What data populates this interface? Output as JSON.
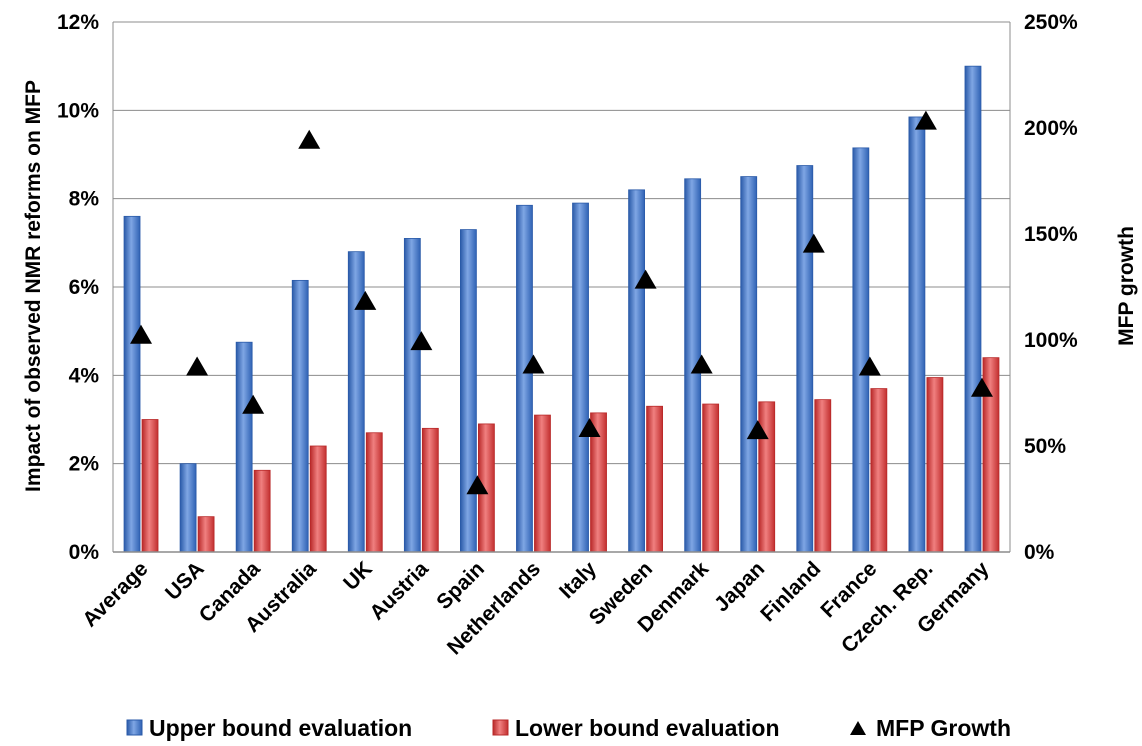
{
  "chart_data": {
    "type": "bar",
    "categories": [
      "Average",
      "USA",
      "Canada",
      "Australia",
      "UK",
      "Austria",
      "Spain",
      "Netherlands",
      "Italy",
      "Sweden",
      "Denmark",
      "Japan",
      "Finland",
      "France",
      "Czech. Rep.",
      "Germany"
    ],
    "series": [
      {
        "name": "Upper bound evaluation",
        "axis": "left",
        "type": "bar",
        "color": "#3f73c4",
        "values": [
          7.6,
          2.0,
          4.75,
          6.15,
          6.8,
          7.1,
          7.3,
          7.85,
          7.9,
          8.2,
          8.45,
          8.5,
          8.75,
          9.15,
          9.85,
          11.0
        ]
      },
      {
        "name": "Lower bound evaluation",
        "axis": "left",
        "type": "bar",
        "color": "#d23a3a",
        "values": [
          3.0,
          0.8,
          1.85,
          2.4,
          2.7,
          2.8,
          2.9,
          3.1,
          3.15,
          3.3,
          3.35,
          3.4,
          3.45,
          3.7,
          3.95,
          4.4
        ]
      },
      {
        "name": "MFP Growth",
        "axis": "right",
        "type": "scatter",
        "marker": "triangle",
        "color": "#000000",
        "values": [
          102,
          87,
          69,
          194,
          118,
          99,
          31,
          88,
          58,
          128,
          88,
          57,
          145,
          87,
          203,
          77
        ]
      }
    ],
    "ylabel": "Impact of observed NMR reforms on MFP",
    "y2label": "MFP growth",
    "ylim": [
      0,
      12
    ],
    "y2lim": [
      0,
      250
    ],
    "yticks": [
      "0%",
      "2%",
      "4%",
      "6%",
      "8%",
      "10%",
      "12%"
    ],
    "y2ticks": [
      "0%",
      "50%",
      "100%",
      "150%",
      "200%",
      "250%"
    ],
    "grid": true,
    "legend_position": "bottom"
  }
}
